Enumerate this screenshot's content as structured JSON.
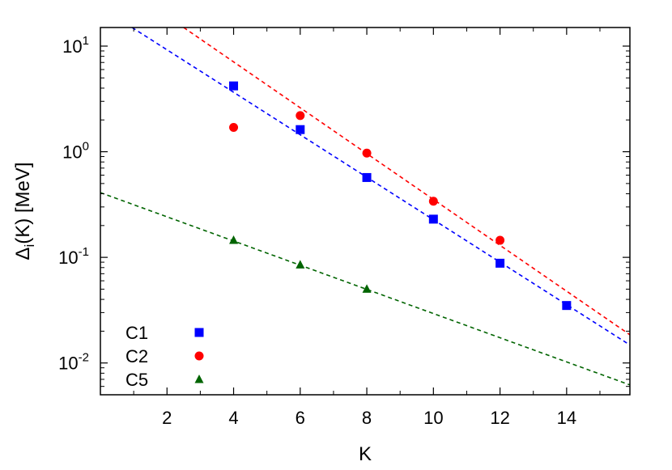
{
  "chart_data": {
    "type": "scatter",
    "title": "",
    "xlabel": "K",
    "ylabel_main": "Δ",
    "ylabel_sub": "i",
    "ylabel_rest": "(K) [MeV]",
    "xlim": [
      0,
      15.9
    ],
    "ylim": [
      0.005,
      15
    ],
    "yscale": "log",
    "grid": false,
    "legend_position": "bottom-left",
    "x_ticks": [
      2,
      4,
      6,
      8,
      10,
      12,
      14
    ],
    "x_tick_labels": [
      "2",
      "4",
      "6",
      "8",
      "10",
      "12",
      "14"
    ],
    "y_ticks": [
      {
        "value": 10,
        "base": "10",
        "exp": "1"
      },
      {
        "value": 1,
        "base": "10",
        "exp": "0"
      },
      {
        "value": 0.1,
        "base": "10",
        "exp": "-1"
      },
      {
        "value": 0.01,
        "base": "10",
        "exp": "-2"
      }
    ],
    "series": [
      {
        "name": "C1",
        "color": "#0000ff",
        "marker": "square",
        "points": [
          [
            4,
            4.2
          ],
          [
            6,
            1.62
          ],
          [
            8,
            0.57
          ],
          [
            10,
            0.23
          ],
          [
            12,
            0.088
          ],
          [
            14,
            0.035
          ]
        ],
        "fit_line": [
          [
            0.95,
            15
          ],
          [
            15.9,
            0.0148
          ]
        ]
      },
      {
        "name": "C2",
        "color": "#ff0000",
        "marker": "circle",
        "points": [
          [
            4,
            1.7
          ],
          [
            6,
            2.2
          ],
          [
            8,
            0.97
          ],
          [
            10,
            0.34
          ],
          [
            12,
            0.145
          ]
        ],
        "fit_line": [
          [
            2.5,
            15
          ],
          [
            15.9,
            0.0185
          ]
        ]
      },
      {
        "name": "C5",
        "color": "#006400",
        "marker": "triangle",
        "points": [
          [
            4,
            0.145
          ],
          [
            6,
            0.085
          ],
          [
            8,
            0.05
          ]
        ],
        "fit_line": [
          [
            0,
            0.41
          ],
          [
            15.9,
            0.0062
          ]
        ]
      }
    ]
  }
}
